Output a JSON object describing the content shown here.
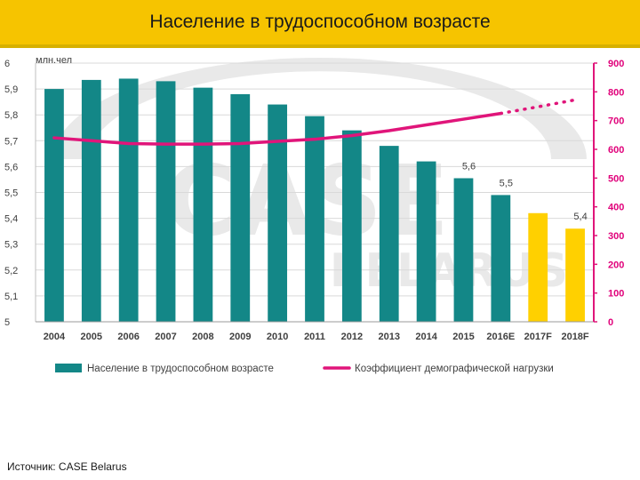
{
  "title": "Население в трудоспособном возрасте",
  "source": "Источник: CASE Belarus",
  "watermark": {
    "main": "CASE",
    "sub": "BELARUS"
  },
  "colors": {
    "teal": "#138787",
    "yellow": "#ffd000",
    "line": "#e0157a",
    "title_bg": "#f6c400",
    "watermark": "#e9e9e9"
  },
  "chart_data": {
    "type": "bar",
    "ylabel": "млн.чел",
    "categories": [
      "2004",
      "2005",
      "2006",
      "2007",
      "2008",
      "2009",
      "2010",
      "2011",
      "2012",
      "2013",
      "2014",
      "2015",
      "2016E",
      "2017F",
      "2018F"
    ],
    "series": [
      {
        "name": "Население в трудоспособном возрасте",
        "type": "bar",
        "axis": "left",
        "values": [
          5.9,
          5.935,
          5.94,
          5.93,
          5.905,
          5.88,
          5.84,
          5.795,
          5.74,
          5.68,
          5.62,
          5.555,
          5.49,
          5.42,
          5.36
        ],
        "forecast_from_index": 13
      },
      {
        "name": "Коэффициент демографической нагрузки",
        "type": "line",
        "axis": "right",
        "values": [
          640,
          630,
          620,
          618,
          618,
          620,
          628,
          635,
          648,
          665,
          685,
          705,
          725,
          748,
          772
        ],
        "dotted_from_index": 12
      }
    ],
    "data_labels": [
      {
        "index": 11,
        "text": "5,6"
      },
      {
        "index": 12,
        "text": "5,5"
      },
      {
        "index": 14,
        "text": "5,4"
      }
    ],
    "y_left": {
      "min": 5,
      "max": 6,
      "step": 0.1,
      "ticks": [
        "5",
        "5,1",
        "5,2",
        "5,3",
        "5,4",
        "5,5",
        "5,6",
        "5,7",
        "5,8",
        "5,9",
        "6"
      ]
    },
    "y_right": {
      "min": 0,
      "max": 900,
      "step": 100,
      "ticks": [
        "0",
        "100",
        "200",
        "300",
        "400",
        "500",
        "600",
        "700",
        "800",
        "900"
      ]
    },
    "grid": true,
    "legend_position": "bottom"
  }
}
